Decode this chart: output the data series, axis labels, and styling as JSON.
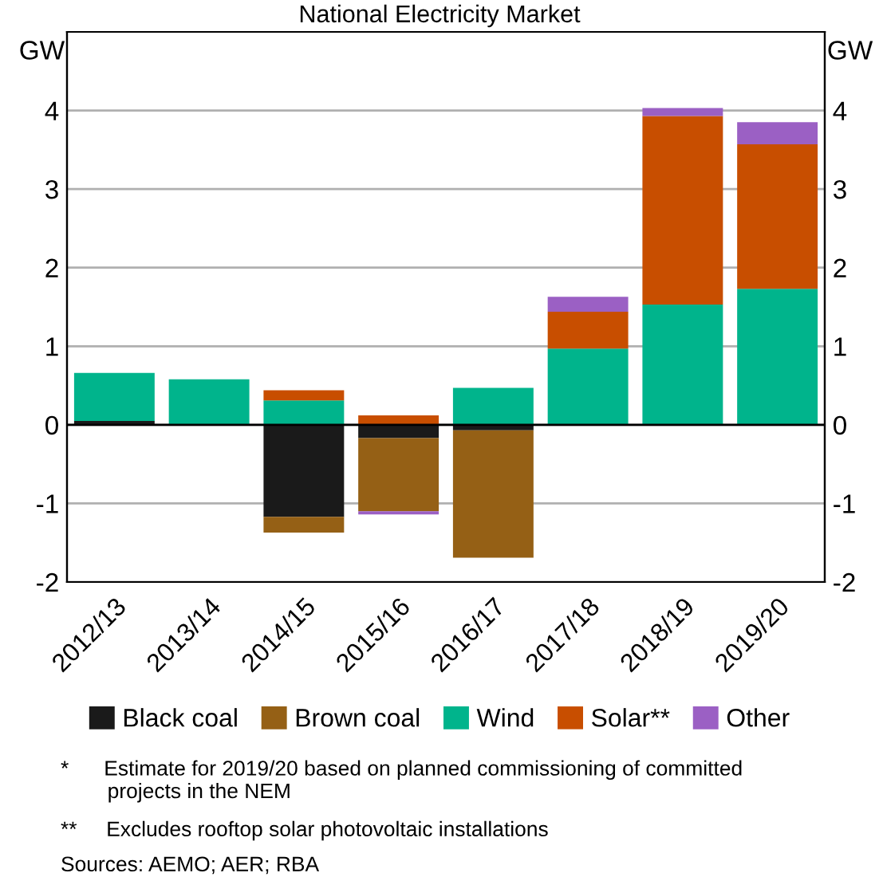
{
  "chart_data": {
    "type": "bar",
    "stacked": true,
    "title": "National Electricity Market",
    "ylabel": "GW",
    "y2label": "GW",
    "categories": [
      "2012/13",
      "2013/14",
      "2014/15",
      "2015/16",
      "2016/17",
      "2017/18",
      "2018/19",
      "2019/20"
    ],
    "series": [
      {
        "name": "Black coal",
        "color": "#1a1a1a",
        "values": [
          0.05,
          null,
          -1.17,
          -0.17,
          -0.07,
          null,
          null,
          null
        ]
      },
      {
        "name": "Brown coal",
        "color": "#956015",
        "values": [
          null,
          null,
          -0.2,
          -0.93,
          -1.62,
          null,
          null,
          null
        ]
      },
      {
        "name": "Wind",
        "color": "#00b48c",
        "values": [
          0.61,
          0.58,
          0.31,
          null,
          0.47,
          0.97,
          1.53,
          1.73
        ]
      },
      {
        "name": "Solar**",
        "color": "#c84e00",
        "values": [
          null,
          null,
          0.13,
          0.12,
          null,
          0.47,
          2.4,
          1.84
        ]
      },
      {
        "name": "Other",
        "color": "#9b60c4",
        "values": [
          null,
          null,
          null,
          -0.04,
          null,
          0.19,
          0.1,
          0.28
        ]
      }
    ],
    "ylim": [
      -2,
      5
    ],
    "yticks": [
      -2,
      -1,
      0,
      1,
      2,
      3,
      4
    ],
    "y2lim": [
      -2,
      5
    ],
    "y2ticks": [
      -2,
      -1,
      0,
      1,
      2,
      3,
      4
    ],
    "grid": "y",
    "legend": "bottom",
    "annotations": [
      "*      Estimate for 2019/20 based on planned commissioning of committed\n        projects in the NEM",
      "**     Excludes rooftop solar photovoltaic installations",
      "Sources: AEMO; AER; RBA"
    ]
  }
}
